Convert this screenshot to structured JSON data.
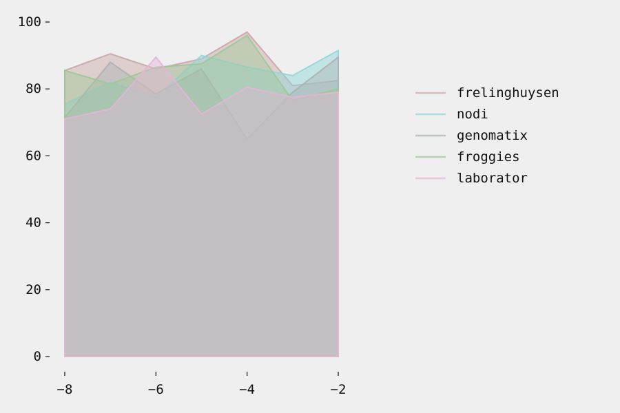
{
  "chart_data": {
    "type": "area",
    "title": "",
    "xlabel": "",
    "ylabel": "",
    "x": [
      -8,
      -7,
      -6,
      -5,
      -4,
      -3,
      -2
    ],
    "xlim": [
      -8,
      -2
    ],
    "ylim": [
      0,
      100
    ],
    "x_ticks": [
      -8,
      -6,
      -4,
      -2
    ],
    "y_ticks": [
      0,
      20,
      40,
      60,
      80,
      100
    ],
    "x_tick_labels": [
      "−8",
      "−6",
      "−4",
      "−2"
    ],
    "y_tick_labels": [
      "0",
      "20",
      "40",
      "60",
      "80",
      "100"
    ],
    "stacked": false,
    "grid": false,
    "legend_position": "right",
    "series": [
      {
        "name": "frelinghuysen",
        "color": "#c9a6a6",
        "values": [
          85.5,
          90.5,
          86,
          89,
          97,
          81,
          82.5
        ]
      },
      {
        "name": "nodi",
        "color": "#8fd6d9",
        "values": [
          75.5,
          82,
          77.5,
          90,
          86.5,
          84,
          91.5
        ]
      },
      {
        "name": "genomatix",
        "color": "#aab3b3",
        "values": [
          71.5,
          88,
          78.5,
          86,
          65,
          79,
          89.5
        ]
      },
      {
        "name": "froggies",
        "color": "#9dc896",
        "values": [
          85.5,
          81.5,
          86.5,
          87.5,
          96,
          76.5,
          80
        ]
      },
      {
        "name": "laborator",
        "color": "#e3b6d6",
        "values": [
          71,
          74,
          89.5,
          72.5,
          80.5,
          77.5,
          79
        ]
      }
    ]
  }
}
